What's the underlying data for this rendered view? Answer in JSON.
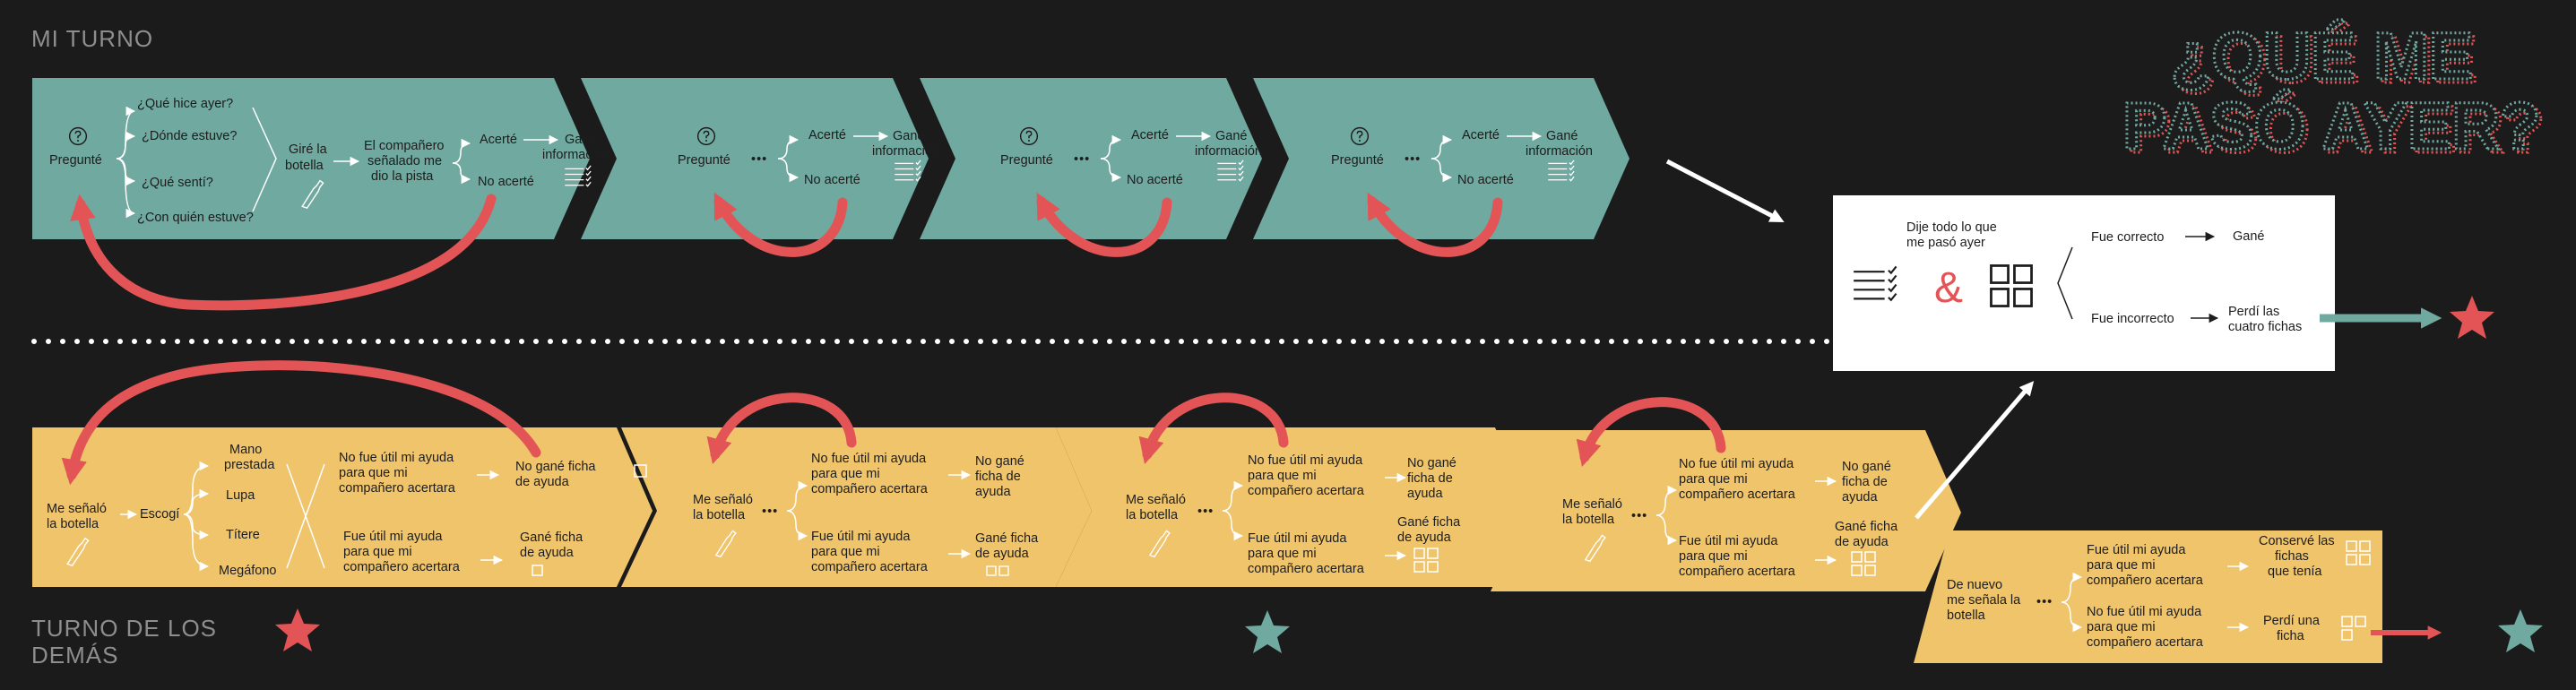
{
  "colors": {
    "background": "#1b1b1b",
    "teal": "#6fa9a0",
    "yellow": "#efc46b",
    "red": "#e35456",
    "white": "#ffffff",
    "label_gray": "#8e8e8e"
  },
  "title": {
    "line1": "¿QUÉ ME",
    "line2": "PASÓ AYER?"
  },
  "sections": {
    "mi_turno": "MI TURNO",
    "turno_demas_1": "TURNO DE LOS",
    "turno_demas_2": "DEMÁS"
  },
  "top": {
    "pregunte": "Pregunté",
    "q1": "¿Qué hice ayer?",
    "q2": "¿Dónde estuve?",
    "q3": "¿Qué sentí?",
    "q4": "¿Con quién estuve?",
    "gire_1": "Giré la",
    "gire_2": "botella",
    "comp_1": "El compañero",
    "comp_2": "señalado me",
    "comp_3": "dio la pista",
    "acerte": "Acerté",
    "no_acerte": "No acerté",
    "gane_1": "Gané",
    "gane_2": "información",
    "dots": "•••",
    "question_icon": "question-circle-icon",
    "bottle_icon": "bottle-icon",
    "checklist_icon": "checklist-icon"
  },
  "result_box": {
    "dije_1": "Dije todo lo que",
    "dije_2": "me pasó ayer",
    "amp": "&",
    "correcto": "Fue correcto",
    "gane": "Gané",
    "incorrecto": "Fue incorrecto",
    "perdi_1": "Perdí las",
    "perdi_2": "cuatro fichas",
    "grid_icon": "four-squares-icon"
  },
  "bottom": {
    "senalo_1": "Me señaló",
    "senalo_2": "la botella",
    "escogi": "Escogí",
    "mano_1": "Mano",
    "mano_2": "prestada",
    "lupa": "Lupa",
    "titere": "Títere",
    "megafono": "Megáfono",
    "no_util_1": "No fue útil mi ayuda",
    "no_util_2": "para que mi",
    "no_util_3": "compañero acertara",
    "util_1": "Fue útil mi ayuda",
    "util_2": "para que mi",
    "util_3": "compañero acertara",
    "no_gane_a": "No gané ficha",
    "no_gane_b": "de ayuda",
    "no_gane_1": "No gané",
    "no_gane_2": "ficha de",
    "no_gane_3": "ayuda",
    "gane_ficha_1": "Gané ficha",
    "gane_ficha_2": "de ayuda"
  },
  "last": {
    "nuevo_1": "De nuevo",
    "nuevo_2": "me señala la",
    "nuevo_3": "botella",
    "conserve_1": "Conservé las",
    "conserve_2": "fichas",
    "conserve_3": "que tenía",
    "perdi_1": "Perdí una",
    "perdi_2": "ficha"
  },
  "stars": {
    "red": "red-star-icon",
    "teal": "teal-star-icon"
  }
}
